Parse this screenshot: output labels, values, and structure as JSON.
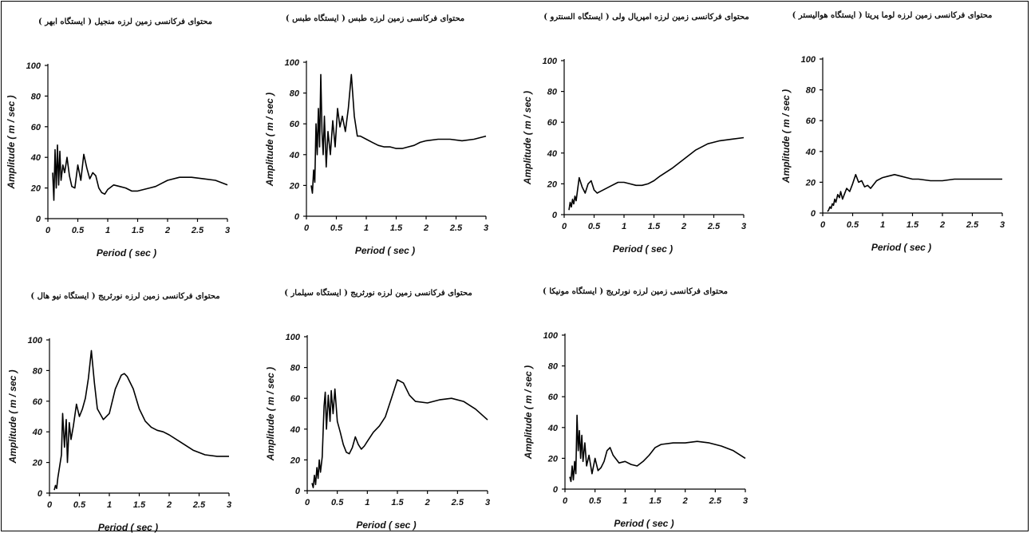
{
  "chart_data": [
    {
      "type": "line",
      "title": "محتوای فرکانسی زمین لرزه منجیل ( ایستگاه ابهر )",
      "xlabel": "Period ( sec )",
      "ylabel": "Amplitude ( m / sec )",
      "xlim": [
        0,
        3
      ],
      "ylim": [
        0,
        100
      ],
      "xticks": [
        "0",
        "0.5",
        "1",
        "1.5",
        "2",
        "2.5",
        "3"
      ],
      "yticks": [
        "0",
        "20",
        "40",
        "60",
        "80",
        "100"
      ],
      "grid": false,
      "x": [
        0.08,
        0.1,
        0.12,
        0.14,
        0.16,
        0.18,
        0.2,
        0.22,
        0.25,
        0.28,
        0.32,
        0.36,
        0.4,
        0.45,
        0.5,
        0.55,
        0.6,
        0.65,
        0.7,
        0.75,
        0.8,
        0.85,
        0.9,
        0.95,
        1.0,
        1.1,
        1.2,
        1.3,
        1.4,
        1.5,
        1.6,
        1.7,
        1.8,
        1.9,
        2.0,
        2.2,
        2.4,
        2.6,
        2.8,
        3.0
      ],
      "y": [
        30,
        12,
        45,
        20,
        48,
        22,
        44,
        25,
        35,
        30,
        40,
        28,
        21,
        20,
        35,
        25,
        42,
        33,
        26,
        30,
        28,
        20,
        17,
        16,
        19,
        22,
        21,
        20,
        18,
        18,
        19,
        20,
        21,
        23,
        25,
        27,
        27,
        26,
        25,
        22
      ]
    },
    {
      "type": "line",
      "title": "محتوای فرکانسی زمین لرزه طبس ( ایستگاه طبس )",
      "xlabel": "Period ( sec )",
      "ylabel": "Amplitude ( m / sec )",
      "xlim": [
        0,
        3
      ],
      "ylim": [
        0,
        100
      ],
      "xticks": [
        "0",
        "0.5",
        "1",
        "1.5",
        "2",
        "2.5",
        "3"
      ],
      "yticks": [
        "0",
        "20",
        "40",
        "60",
        "80",
        "100"
      ],
      "grid": false,
      "x": [
        0.08,
        0.1,
        0.12,
        0.14,
        0.16,
        0.18,
        0.2,
        0.22,
        0.24,
        0.26,
        0.28,
        0.3,
        0.33,
        0.36,
        0.4,
        0.44,
        0.48,
        0.52,
        0.56,
        0.6,
        0.65,
        0.7,
        0.75,
        0.8,
        0.85,
        0.9,
        1.0,
        1.1,
        1.2,
        1.3,
        1.4,
        1.5,
        1.6,
        1.7,
        1.8,
        1.9,
        2.0,
        2.2,
        2.4,
        2.6,
        2.8,
        3.0
      ],
      "y": [
        20,
        15,
        30,
        22,
        60,
        40,
        70,
        45,
        92,
        55,
        40,
        65,
        32,
        55,
        40,
        62,
        45,
        70,
        58,
        65,
        55,
        70,
        92,
        65,
        52,
        52,
        50,
        48,
        46,
        45,
        45,
        44,
        44,
        45,
        46,
        48,
        49,
        50,
        50,
        49,
        50,
        52
      ]
    },
    {
      "type": "line",
      "title": "محتوای فرکانسی زمین لرزه امپریال ولی ( ایستگاه السنترو )",
      "xlabel": "Period ( sec )",
      "ylabel": "Amplitude ( m / sec )",
      "xlim": [
        0,
        3
      ],
      "ylim": [
        0,
        100
      ],
      "xticks": [
        "0",
        "0.5",
        "1",
        "1.5",
        "2",
        "2.5",
        "3"
      ],
      "yticks": [
        "0",
        "20",
        "40",
        "60",
        "80",
        "100"
      ],
      "grid": false,
      "x": [
        0.08,
        0.1,
        0.12,
        0.14,
        0.16,
        0.18,
        0.2,
        0.22,
        0.25,
        0.3,
        0.35,
        0.4,
        0.45,
        0.5,
        0.55,
        0.6,
        0.7,
        0.8,
        0.9,
        1.0,
        1.1,
        1.2,
        1.3,
        1.4,
        1.5,
        1.6,
        1.8,
        2.0,
        2.2,
        2.4,
        2.6,
        2.8,
        3.0
      ],
      "y": [
        3,
        8,
        5,
        10,
        7,
        12,
        9,
        15,
        24,
        18,
        14,
        20,
        22,
        16,
        14,
        15,
        17,
        19,
        21,
        21,
        20,
        19,
        19,
        20,
        22,
        25,
        30,
        36,
        42,
        46,
        48,
        49,
        50
      ]
    },
    {
      "type": "line",
      "title": "محتوای فرکانسی زمین لرزه لوما پریتا ( ایستگاه هوالیستر )",
      "xlabel": "Period ( sec )",
      "ylabel": "Amplitude ( m / sec )",
      "xlim": [
        0,
        3
      ],
      "ylim": [
        0,
        100
      ],
      "xticks": [
        "0",
        "0.5",
        "1",
        "1.5",
        "2",
        "2.5",
        "3"
      ],
      "yticks": [
        "0",
        "20",
        "40",
        "60",
        "80",
        "100"
      ],
      "grid": false,
      "x": [
        0.08,
        0.1,
        0.12,
        0.14,
        0.16,
        0.18,
        0.2,
        0.22,
        0.25,
        0.28,
        0.3,
        0.33,
        0.36,
        0.4,
        0.45,
        0.5,
        0.55,
        0.6,
        0.65,
        0.7,
        0.75,
        0.8,
        0.9,
        1.0,
        1.1,
        1.2,
        1.3,
        1.4,
        1.5,
        1.6,
        1.8,
        2.0,
        2.2,
        2.5,
        3.0
      ],
      "y": [
        1,
        2,
        4,
        3,
        6,
        5,
        9,
        7,
        12,
        10,
        14,
        9,
        12,
        16,
        14,
        19,
        25,
        20,
        21,
        17,
        18,
        16,
        21,
        23,
        24,
        25,
        24,
        23,
        22,
        22,
        21,
        21,
        22,
        22,
        22
      ]
    },
    {
      "type": "line",
      "title": "محتوای فرکانسی زمین لرزه نورثریج ( ایستگاه نیو هال )",
      "xlabel": "Period ( sec )",
      "ylabel": "Amplitude ( m / sec )",
      "xlim": [
        0,
        3
      ],
      "ylim": [
        0,
        100
      ],
      "xticks": [
        "0",
        "0.5",
        "1",
        "1.5",
        "2",
        "2.5",
        "3"
      ],
      "yticks": [
        "0",
        "20",
        "40",
        "60",
        "80",
        "100"
      ],
      "grid": false,
      "x": [
        0.08,
        0.1,
        0.12,
        0.14,
        0.16,
        0.18,
        0.2,
        0.22,
        0.25,
        0.28,
        0.3,
        0.33,
        0.36,
        0.4,
        0.45,
        0.5,
        0.55,
        0.6,
        0.65,
        0.7,
        0.75,
        0.8,
        0.9,
        1.0,
        1.1,
        1.2,
        1.25,
        1.3,
        1.4,
        1.5,
        1.6,
        1.7,
        1.8,
        1.9,
        2.0,
        2.2,
        2.4,
        2.6,
        2.8,
        3.0
      ],
      "y": [
        2,
        5,
        3,
        10,
        15,
        20,
        25,
        52,
        30,
        48,
        20,
        46,
        35,
        44,
        58,
        50,
        55,
        62,
        75,
        93,
        72,
        55,
        48,
        52,
        68,
        77,
        78,
        76,
        68,
        55,
        47,
        43,
        41,
        40,
        38,
        33,
        28,
        25,
        24,
        24
      ]
    },
    {
      "type": "line",
      "title": "محتوای فرکانسی زمین لرزه نورثریج ( ایستگاه سیلمار )",
      "xlabel": "Period ( sec )",
      "ylabel": "Amplitude ( m / sec )",
      "xlim": [
        0,
        3
      ],
      "ylim": [
        0,
        100
      ],
      "xticks": [
        "0",
        "0.5",
        "1",
        "1.5",
        "2",
        "2.5",
        "3"
      ],
      "yticks": [
        "0",
        "20",
        "40",
        "60",
        "80",
        "100"
      ],
      "grid": false,
      "x": [
        0.08,
        0.1,
        0.12,
        0.14,
        0.16,
        0.18,
        0.2,
        0.22,
        0.25,
        0.28,
        0.3,
        0.32,
        0.35,
        0.38,
        0.4,
        0.43,
        0.46,
        0.5,
        0.55,
        0.6,
        0.65,
        0.7,
        0.75,
        0.8,
        0.85,
        0.9,
        0.95,
        1.0,
        1.1,
        1.2,
        1.3,
        1.4,
        1.5,
        1.6,
        1.7,
        1.8,
        2.0,
        2.2,
        2.4,
        2.6,
        2.8,
        3.0
      ],
      "y": [
        5,
        2,
        10,
        4,
        15,
        8,
        20,
        12,
        22,
        55,
        64,
        40,
        62,
        45,
        65,
        50,
        66,
        45,
        38,
        30,
        25,
        24,
        28,
        35,
        30,
        27,
        29,
        32,
        38,
        42,
        48,
        60,
        72,
        70,
        62,
        58,
        57,
        59,
        60,
        58,
        53,
        46
      ]
    },
    {
      "type": "line",
      "title": "محتوای فرکانسی زمین لرزه نورثریج ( ایستگاه مونیکا )",
      "xlabel": "Period ( sec )",
      "ylabel": "Amplitude ( m / sec )",
      "xlim": [
        0,
        3
      ],
      "ylim": [
        0,
        100
      ],
      "xticks": [
        "0",
        "0.5",
        "1",
        "1.5",
        "2",
        "2.5",
        "3"
      ],
      "yticks": [
        "0",
        "20",
        "40",
        "60",
        "80",
        "100"
      ],
      "grid": false,
      "x": [
        0.08,
        0.1,
        0.12,
        0.14,
        0.16,
        0.18,
        0.2,
        0.22,
        0.24,
        0.26,
        0.28,
        0.3,
        0.33,
        0.36,
        0.4,
        0.45,
        0.5,
        0.55,
        0.6,
        0.65,
        0.7,
        0.75,
        0.8,
        0.9,
        1.0,
        1.1,
        1.2,
        1.3,
        1.4,
        1.5,
        1.6,
        1.8,
        2.0,
        2.2,
        2.4,
        2.6,
        2.8,
        3.0
      ],
      "y": [
        8,
        5,
        15,
        6,
        18,
        10,
        48,
        25,
        38,
        20,
        35,
        18,
        30,
        15,
        22,
        10,
        20,
        12,
        14,
        18,
        25,
        27,
        22,
        17,
        18,
        16,
        15,
        18,
        22,
        27,
        29,
        30,
        30,
        31,
        30,
        28,
        25,
        20
      ]
    }
  ]
}
